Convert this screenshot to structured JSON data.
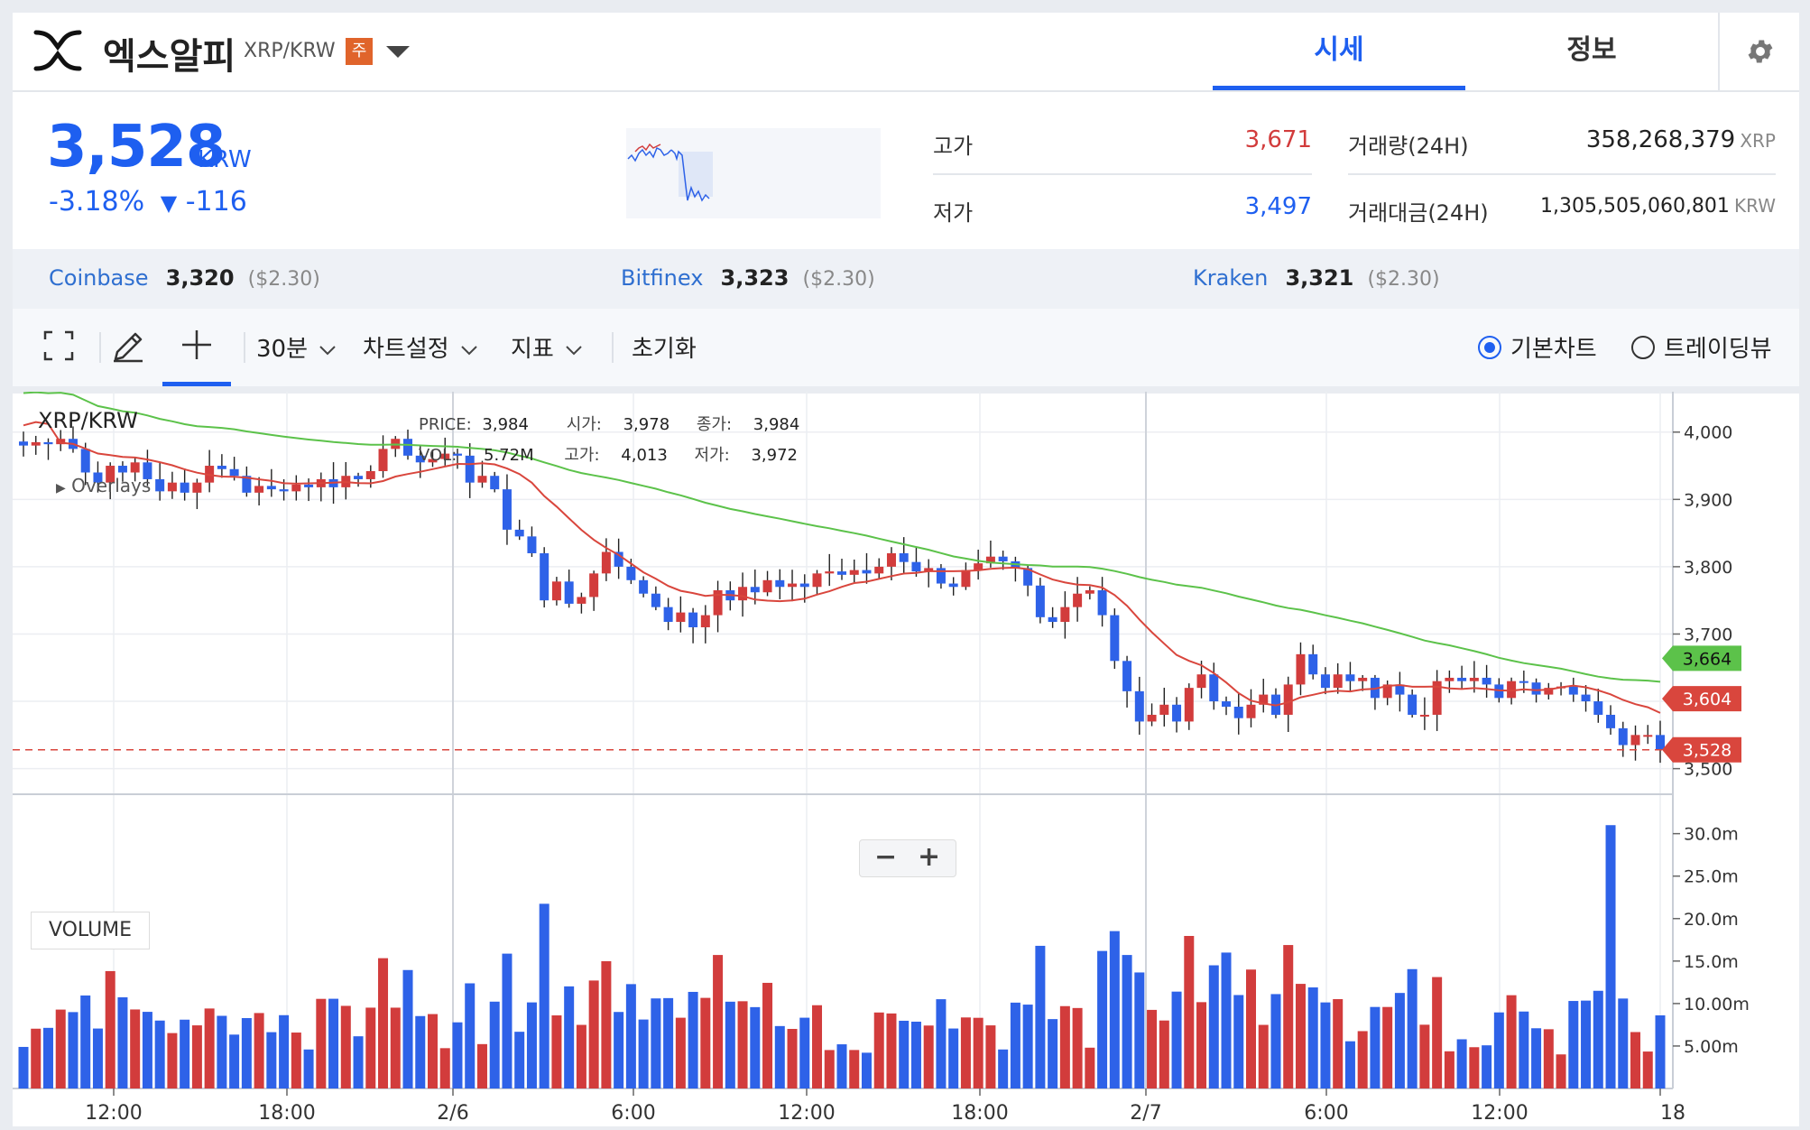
{
  "header": {
    "coin_name": "엑스알피",
    "pair": "XRP/KRW",
    "badge": "주",
    "tabs": [
      {
        "label": "시세",
        "active": true
      },
      {
        "label": "정보",
        "active": false
      }
    ]
  },
  "price": {
    "value": "3,528",
    "unit": "KRW",
    "change_pct": "-3.18%",
    "change_arrow": "▼",
    "change_abs": "-116"
  },
  "stats": {
    "high_label": "고가",
    "high": "3,671",
    "low_label": "저가",
    "low": "3,497",
    "volume_label": "거래량(24H)",
    "volume": "358,268,379",
    "volume_unit": "XRP",
    "amount_label": "거래대금(24H)",
    "amount": "1,305,505,060,801",
    "amount_unit": "KRW"
  },
  "exchanges": [
    {
      "name": "Coinbase",
      "price": "3,320",
      "usd": "($2.30)"
    },
    {
      "name": "Bitfinex",
      "price": "3,323",
      "usd": "($2.30)"
    },
    {
      "name": "Kraken",
      "price": "3,321",
      "usd": "($2.30)"
    }
  ],
  "toolbar": {
    "interval": "30분",
    "chart_settings": "차트설정",
    "indicators": "지표",
    "reset": "초기화",
    "view_basic": "기본차트",
    "view_trading": "트레이딩뷰"
  },
  "legend": {
    "symbol": "XRP/KRW",
    "overlays": "Overlays",
    "price_label": "PRICE:",
    "price": "3,984",
    "open_label": "시가:",
    "open": "3,978",
    "close_label": "종가:",
    "close": "3,984",
    "vol_label": "VOL:",
    "vol": "5.72M",
    "high_label": "고가:",
    "high": "4,013",
    "low_label": "저가:",
    "low": "3,972"
  },
  "volume_panel_label": "VOLUME",
  "zoom": {
    "minus": "−",
    "plus": "+"
  },
  "colors": {
    "up": "#d23c3c",
    "down": "#2e62e8",
    "ma_short": "#d9463d",
    "ma_long": "#5cc24a",
    "accent": "#1e5ff0"
  },
  "chart_data": {
    "type": "candlestick",
    "symbol": "XRP/KRW",
    "y_ticks": [
      4000,
      3900,
      3800,
      3700,
      3600,
      3500
    ],
    "ylim": [
      3470,
      4060
    ],
    "x_ticks": [
      "12:00",
      "18:00",
      "2/6",
      "6:00",
      "12:00",
      "18:00",
      "2/7",
      "6:00",
      "12:00",
      "18"
    ],
    "price_tags": [
      {
        "label": "3,664",
        "value": 3664,
        "color": "#5cc24a"
      },
      {
        "label": "3,604",
        "value": 3604,
        "color": "#d9463d"
      },
      {
        "label": "3,528",
        "value": 3528,
        "color": "#d9463d"
      }
    ],
    "current_price": 3528,
    "volume_ticks": [
      "30.0m",
      "25.0m",
      "20.0m",
      "15.0m",
      "10.00m",
      "5.00m"
    ],
    "volume_tick_values": [
      30,
      25,
      20,
      15,
      10,
      5
    ],
    "closes": [
      3980,
      3985,
      3982,
      3990,
      3975,
      3940,
      3925,
      3950,
      3940,
      3955,
      3930,
      3912,
      3925,
      3910,
      3925,
      3950,
      3945,
      3935,
      3910,
      3920,
      3915,
      3912,
      3922,
      3918,
      3930,
      3918,
      3935,
      3930,
      3942,
      3975,
      3990,
      3965,
      3955,
      3960,
      3968,
      3965,
      3925,
      3935,
      3915,
      3855,
      3845,
      3820,
      3750,
      3778,
      3745,
      3755,
      3790,
      3822,
      3800,
      3780,
      3760,
      3740,
      3718,
      3732,
      3710,
      3728,
      3765,
      3750,
      3770,
      3762,
      3780,
      3770,
      3775,
      3770,
      3790,
      3793,
      3788,
      3795,
      3790,
      3800,
      3820,
      3807,
      3793,
      3798,
      3775,
      3770,
      3795,
      3805,
      3815,
      3808,
      3798,
      3772,
      3725,
      3718,
      3740,
      3760,
      3765,
      3728,
      3660,
      3615,
      3570,
      3580,
      3595,
      3570,
      3620,
      3640,
      3600,
      3592,
      3575,
      3595,
      3610,
      3580,
      3625,
      3670,
      3640,
      3620,
      3640,
      3630,
      3635,
      3605,
      3625,
      3610,
      3580,
      3580,
      3630,
      3635,
      3630,
      3635,
      3625,
      3605,
      3630,
      3628,
      3610,
      3620,
      3622,
      3610,
      3600,
      3580,
      3560,
      3535,
      3550,
      3550,
      3528
    ]
  }
}
